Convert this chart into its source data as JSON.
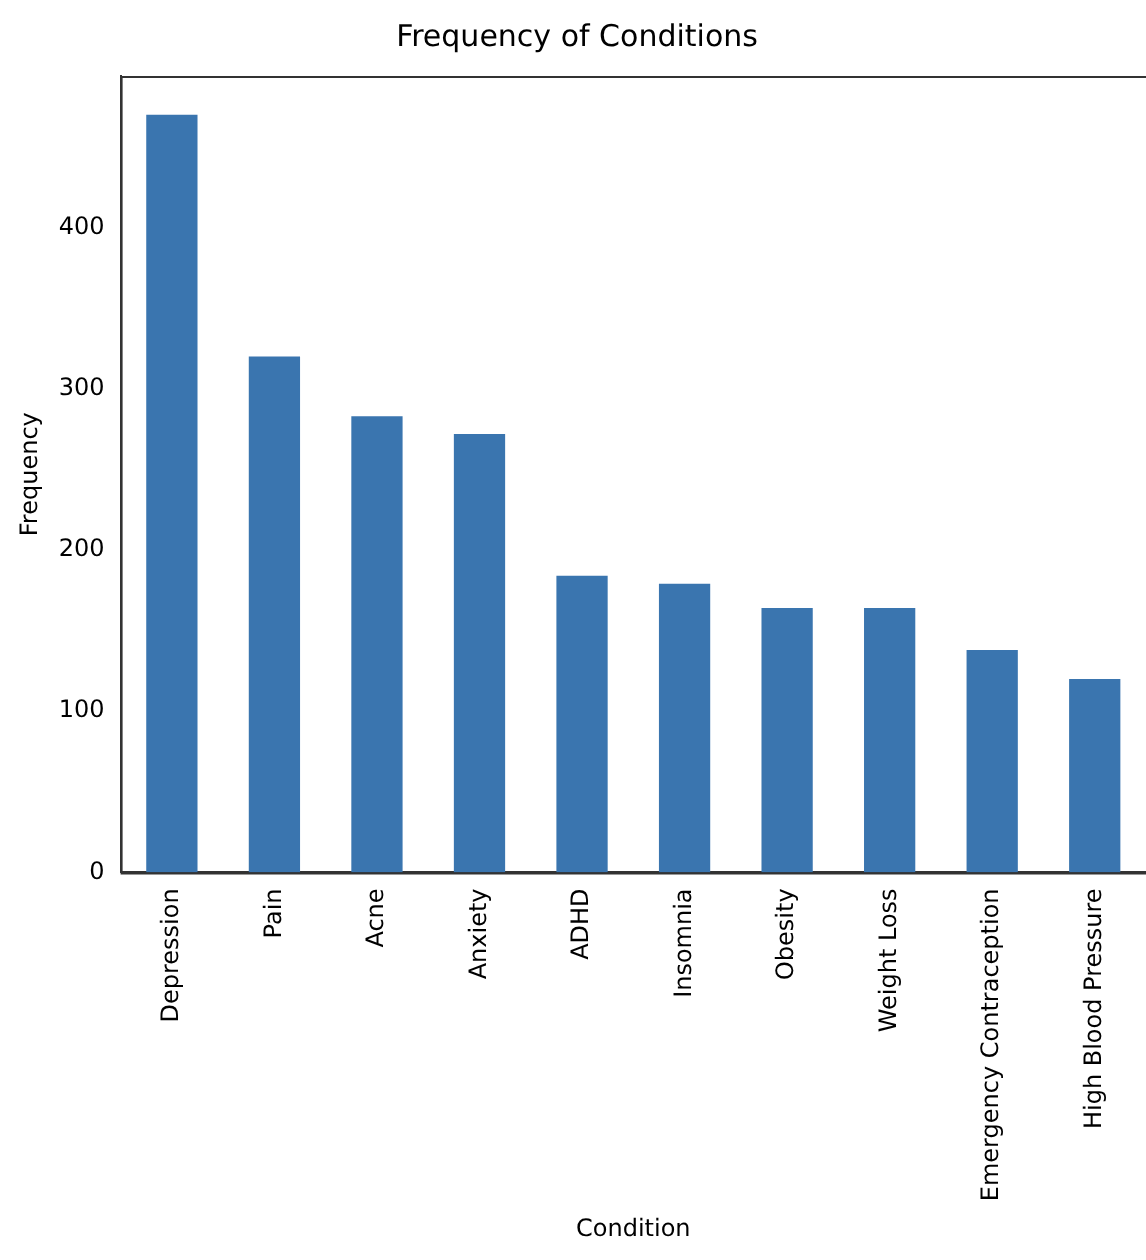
{
  "chart_data": {
    "type": "bar",
    "title": "Frequency of Conditions",
    "xlabel": "Condition",
    "ylabel": "Frequency",
    "categories": [
      "Depression",
      "Pain",
      "Acne",
      "Anxiety",
      "ADHD",
      "Insomnia",
      "Obesity",
      "Weight Loss",
      "Emergency Contraception",
      "High Blood Pressure"
    ],
    "values": [
      470,
      320,
      283,
      272,
      184,
      179,
      164,
      164,
      138,
      120
    ],
    "color": "#3a75af",
    "ylim": [
      0,
      494
    ],
    "yticks": [
      0,
      100,
      200,
      300,
      400
    ],
    "grid": false,
    "legend": false
  }
}
